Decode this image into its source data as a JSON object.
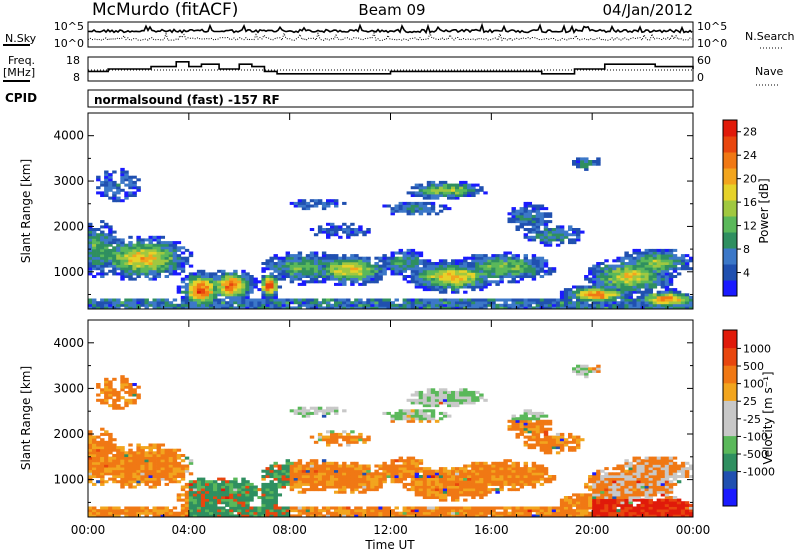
{
  "header": {
    "station": "McMurdo (fitACF)",
    "beam": "Beam 09",
    "date": "04/Jan/2012"
  },
  "top_strip": {
    "left_label": "N.Sky",
    "right_label": "N.Search",
    "left_ticks": [
      "10^5",
      "10^0"
    ],
    "right_ticks": [
      "10^5",
      "10^0"
    ]
  },
  "freq_strip": {
    "left_label_1": "Freq.",
    "left_label_2": "[MHz]",
    "right_label": "Nave",
    "left_ticks": [
      "18",
      "8"
    ],
    "right_ticks": [
      "60",
      "0"
    ]
  },
  "cpid": {
    "label": "CPID",
    "value": "normalsound (fast) -157 RF"
  },
  "colors": {
    "power_scale": [
      "#1a1aff",
      "#2050b0",
      "#3c78c8",
      "#2f8f60",
      "#5ab85a",
      "#a0c840",
      "#e6d22a",
      "#f2a51e",
      "#f07814",
      "#e8460e",
      "#e01a0a"
    ],
    "velocity_scale": [
      "#1a1aff",
      "#2050b0",
      "#2f8f60",
      "#5ab85a",
      "#c8c8c8",
      "#c8c8c8",
      "#f2a51e",
      "#f07814",
      "#e8460e",
      "#e01a0a"
    ]
  },
  "chart_data": [
    {
      "type": "heatmap",
      "name": "power",
      "xlabel": "",
      "ylabel": "Slant Range [km]",
      "xlim": [
        0,
        24
      ],
      "ylim": [
        180,
        4500
      ],
      "yticks": [
        1000,
        2000,
        3000,
        4000
      ],
      "colorbar_label": "Power [dB]",
      "colorbar_ticks": [
        "4",
        "8",
        "12",
        "16",
        "20",
        "24",
        "28"
      ],
      "colorbar_range": [
        0,
        30
      ]
    },
    {
      "type": "heatmap",
      "name": "velocity",
      "xlabel": "Time UT",
      "ylabel": "Slant Range [km]",
      "xlim": [
        0,
        24
      ],
      "ylim": [
        180,
        4500
      ],
      "xticks": [
        "00:00",
        "04:00",
        "08:00",
        "12:00",
        "16:00",
        "20:00",
        "00:00"
      ],
      "yticks": [
        1000,
        2000,
        3000,
        4000
      ],
      "colorbar_label": "Velocity [m s⁻¹]",
      "colorbar_ticks": [
        "1000",
        "500",
        "100",
        "25",
        "-25",
        "-100",
        "-500",
        "-1000"
      ]
    },
    {
      "type": "line",
      "name": "frequency",
      "ylim": [
        8,
        18
      ],
      "x": [
        0,
        0.8,
        1.7,
        2.5,
        3.5,
        4.0,
        4.5,
        5.2,
        6.0,
        6.5,
        7.0,
        7.5,
        11.2,
        12.0,
        13.0,
        17.5,
        18.0,
        19.3,
        20.5,
        22.5,
        24
      ],
      "values": [
        12,
        13,
        13,
        14,
        16,
        14,
        15,
        13,
        15,
        14,
        12,
        11,
        11,
        12,
        12,
        12,
        11,
        13,
        15,
        14,
        13
      ]
    }
  ]
}
